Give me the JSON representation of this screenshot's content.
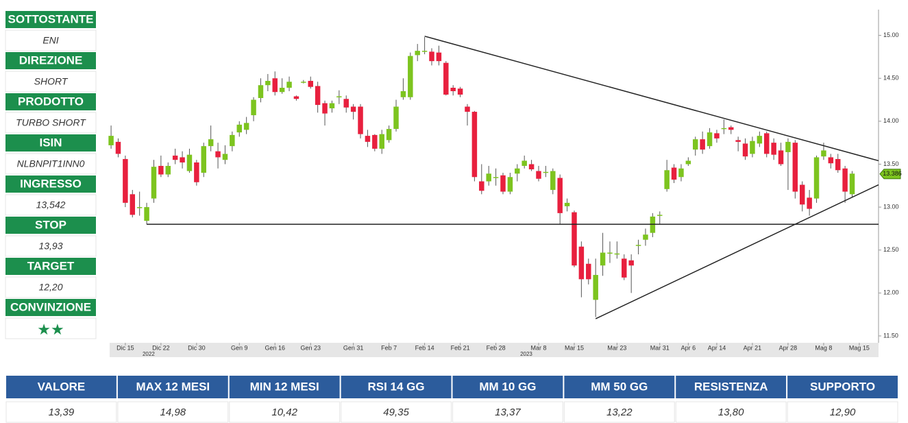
{
  "panel": [
    {
      "label": "SOTTOSTANTE",
      "value": "ENI"
    },
    {
      "label": "DIREZIONE",
      "value": "SHORT"
    },
    {
      "label": "PRODOTTO",
      "value": "TURBO SHORT"
    },
    {
      "label": "ISIN",
      "value": "NLBNPIT1INN0"
    },
    {
      "label": "INGRESSO",
      "value": "13,542"
    },
    {
      "label": "STOP",
      "value": "13,93"
    },
    {
      "label": "TARGET",
      "value": "12,20"
    },
    {
      "label": "CONVINZIONE",
      "value": "★★"
    }
  ],
  "chart_data": {
    "type": "candlestick",
    "up_color": "#7dc41f",
    "down_color": "#e8203e",
    "open": [
      13.72,
      13.76,
      13.56,
      13.15,
      13.0,
      12.84,
      13.1,
      13.48,
      13.38,
      13.6,
      13.58,
      13.42,
      13.52,
      13.4,
      13.71,
      13.65,
      13.55,
      13.71,
      13.87,
      13.9,
      14.07,
      14.27,
      14.42,
      14.5,
      14.34,
      14.39,
      14.29,
      14.46,
      14.47,
      14.41,
      14.21,
      14.15,
      14.29,
      14.26,
      14.17,
      14.17,
      13.83,
      13.84,
      13.68,
      13.78,
      13.91,
      14.28,
      14.28,
      14.77,
      14.82,
      14.81,
      14.8,
      14.68,
      14.39,
      14.38,
      14.17,
      14.11,
      13.3,
      13.3,
      13.35,
      13.37,
      13.18,
      13.39,
      13.48,
      13.5,
      13.42,
      13.41,
      13.2,
      13.34,
      13.01,
      12.94,
      12.54,
      12.34,
      11.92,
      12.32,
      12.47,
      12.46,
      12.4,
      12.38,
      12.56,
      12.62,
      12.7,
      12.91,
      13.21,
      13.46,
      13.35,
      13.5,
      13.67,
      13.79,
      13.71,
      13.86,
      13.92,
      13.93,
      13.78,
      13.74,
      13.62,
      13.74,
      13.86,
      13.75,
      13.66,
      13.64,
      13.75,
      13.26,
      13.11,
      13.1,
      13.59,
      13.58,
      13.56,
      13.45,
      13.15
    ],
    "high": [
      13.95,
      13.8,
      13.6,
      13.2,
      13.18,
      13.05,
      13.55,
      13.6,
      13.52,
      13.68,
      13.65,
      13.68,
      13.55,
      13.75,
      13.95,
      13.75,
      13.72,
      13.88,
      14.0,
      14.05,
      14.28,
      14.5,
      14.55,
      14.58,
      14.5,
      14.52,
      14.3,
      14.48,
      14.52,
      14.46,
      14.24,
      14.24,
      14.36,
      14.3,
      14.2,
      14.2,
      13.9,
      13.85,
      13.9,
      13.95,
      14.25,
      14.5,
      14.8,
      14.9,
      14.98,
      14.85,
      14.88,
      14.7,
      14.42,
      14.4,
      14.2,
      14.12,
      13.5,
      13.48,
      13.45,
      13.4,
      13.4,
      13.5,
      13.6,
      13.55,
      13.48,
      13.48,
      13.45,
      13.38,
      13.1,
      12.96,
      12.6,
      12.4,
      12.4,
      12.7,
      12.6,
      12.6,
      12.45,
      12.45,
      12.62,
      12.75,
      12.93,
      12.95,
      13.55,
      13.5,
      13.5,
      13.58,
      13.82,
      13.88,
      13.92,
      13.9,
      14.02,
      13.95,
      13.82,
      13.8,
      13.82,
      13.88,
      13.88,
      13.8,
      13.75,
      13.8,
      13.78,
      13.3,
      13.2,
      13.6,
      13.75,
      13.62,
      13.62,
      13.48,
      13.42
    ],
    "low": [
      13.68,
      13.58,
      13.0,
      12.88,
      12.9,
      12.8,
      13.05,
      13.35,
      13.35,
      13.5,
      13.45,
      13.4,
      13.25,
      13.35,
      13.65,
      13.45,
      13.5,
      13.65,
      13.82,
      13.85,
      14.0,
      14.22,
      14.35,
      14.3,
      14.32,
      14.35,
      14.24,
      14.44,
      14.38,
      14.1,
      13.95,
      14.1,
      14.2,
      14.1,
      14.02,
      13.8,
      13.7,
      13.65,
      13.62,
      13.75,
      13.88,
      14.25,
      14.25,
      14.7,
      14.78,
      14.65,
      14.65,
      14.3,
      14.3,
      14.28,
      13.95,
      13.3,
      13.15,
      13.25,
      13.25,
      13.15,
      13.15,
      13.3,
      13.45,
      13.42,
      13.3,
      13.35,
      13.15,
      12.8,
      12.95,
      12.3,
      11.95,
      12.1,
      11.72,
      12.2,
      12.35,
      12.4,
      12.15,
      12.0,
      12.45,
      12.55,
      12.65,
      12.8,
      13.18,
      13.28,
      13.3,
      13.48,
      13.6,
      13.62,
      13.68,
      13.75,
      13.85,
      13.85,
      13.65,
      13.55,
      13.58,
      13.7,
      13.58,
      13.55,
      13.48,
      13.2,
      13.1,
      12.95,
      12.9,
      13.05,
      13.55,
      13.45,
      13.4,
      13.05,
      13.12
    ],
    "close": [
      13.83,
      13.62,
      13.05,
      12.91,
      13.0,
      13.0,
      13.47,
      13.38,
      13.48,
      13.55,
      13.52,
      13.61,
      13.29,
      13.71,
      13.79,
      13.58,
      13.62,
      13.84,
      13.96,
      13.98,
      14.25,
      14.42,
      14.47,
      14.34,
      14.39,
      14.46,
      14.26,
      14.46,
      14.4,
      14.19,
      14.09,
      14.21,
      14.29,
      14.16,
      14.11,
      13.85,
      13.76,
      13.68,
      13.85,
      13.91,
      14.17,
      14.35,
      14.76,
      14.82,
      14.82,
      14.7,
      14.7,
      14.31,
      14.35,
      14.31,
      14.11,
      13.35,
      13.19,
      13.39,
      13.35,
      13.18,
      13.35,
      13.45,
      13.54,
      13.44,
      13.33,
      13.41,
      13.42,
      12.93,
      13.05,
      12.32,
      12.16,
      12.16,
      12.21,
      12.47,
      12.47,
      12.46,
      12.18,
      12.32,
      12.56,
      12.68,
      12.89,
      12.91,
      13.43,
      13.32,
      13.45,
      13.54,
      13.79,
      13.67,
      13.87,
      13.8,
      13.92,
      13.9,
      13.76,
      13.59,
      13.77,
      13.83,
      13.62,
      13.61,
      13.5,
      13.76,
      13.18,
      13.03,
      12.98,
      13.58,
      13.66,
      13.51,
      13.43,
      13.18,
      13.39
    ],
    "xlim": [
      -0.2,
      107.7
    ],
    "xticks": [
      {
        "value": 2,
        "label": "Dic 15"
      },
      {
        "value": 7,
        "label": "Dic 22"
      },
      {
        "value": 12,
        "label": "Dic 30"
      },
      {
        "value": 18,
        "label": "Gen 9"
      },
      {
        "value": 23,
        "label": "Gen 16"
      },
      {
        "value": 28,
        "label": "Gen 23"
      },
      {
        "value": 34,
        "label": "Gen 31"
      },
      {
        "value": 39,
        "label": "Feb 7"
      },
      {
        "value": 44,
        "label": "Feb 14"
      },
      {
        "value": 49,
        "label": "Feb 21"
      },
      {
        "value": 54,
        "label": "Feb 28"
      },
      {
        "value": 60,
        "label": "Mar 8"
      },
      {
        "value": 65,
        "label": "Mar 15"
      },
      {
        "value": 71,
        "label": "Mar 23"
      },
      {
        "value": 77,
        "label": "Mar 31"
      },
      {
        "value": 81,
        "label": "Apr 6"
      },
      {
        "value": 85,
        "label": "Apr 14"
      },
      {
        "value": 90,
        "label": "Apr 21"
      },
      {
        "value": 95,
        "label": "Apr 28"
      },
      {
        "value": 100,
        "label": "Mag 8"
      },
      {
        "value": 105,
        "label": "Mag 15"
      }
    ],
    "year_ticks": [
      {
        "value": 7,
        "label": "2022"
      },
      {
        "value": 60,
        "label": "2023"
      }
    ],
    "ylim": [
      11.42,
      15.3
    ],
    "yticks": [
      {
        "value": 11.5,
        "label": "11.50"
      },
      {
        "value": 12,
        "label": "12.00"
      },
      {
        "value": 12.5,
        "label": "12.50"
      },
      {
        "value": 13,
        "label": "13.00"
      },
      {
        "value": 13.5,
        "label": "13.50"
      },
      {
        "value": 14,
        "label": "14.00"
      },
      {
        "value": 14.5,
        "label": "14.50"
      },
      {
        "value": 15,
        "label": "15.00"
      }
    ],
    "last_value": 13.386,
    "lines": [
      {
        "x": [
          44,
          107.7
        ],
        "y": [
          14.99,
          13.54
        ]
      },
      {
        "x": [
          68,
          107.7
        ],
        "y": [
          11.7,
          13.26
        ]
      },
      {
        "x": [
          5,
          107.7
        ],
        "y": [
          12.8,
          12.8
        ]
      }
    ]
  },
  "table": {
    "headers": [
      "VALORE",
      "MAX 12 MESI",
      "MIN 12 MESI",
      "RSI 14 GG",
      "MM 10 GG",
      "MM 50 GG",
      "RESISTENZA",
      "SUPPORTO"
    ],
    "values": [
      "13,39",
      "14,98",
      "10,42",
      "49,35",
      "13,37",
      "13,22",
      "13,80",
      "12,90"
    ]
  }
}
